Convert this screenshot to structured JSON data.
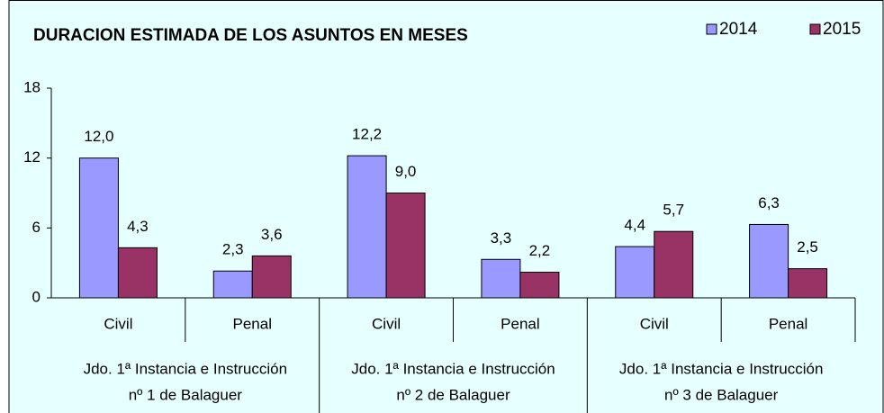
{
  "chart_data": {
    "type": "bar",
    "title": "DURACION ESTIMADA DE LOS ASUNTOS EN MESES",
    "categories": [
      "Civil",
      "Penal",
      "Civil",
      "Penal",
      "Civil",
      "Penal"
    ],
    "groups": [
      [
        "Jdo. 1ª Instancia e Instrucción",
        "nº 1 de Balaguer"
      ],
      [
        "Jdo. 1ª Instancia e Instrucción",
        "nº 2 de Balaguer"
      ],
      [
        "Jdo. 1ª Instancia e Instrucción",
        "nº 3 de Balaguer"
      ]
    ],
    "series": [
      {
        "name": "2014",
        "color": "#9999ff",
        "values": [
          12.0,
          2.3,
          12.2,
          3.3,
          4.4,
          6.3
        ],
        "value_labels": [
          "12,0",
          "2,3",
          "12,2",
          "3,3",
          "4,4",
          "6,3"
        ]
      },
      {
        "name": "2015",
        "color": "#993366",
        "values": [
          4.3,
          3.6,
          9.0,
          2.2,
          5.7,
          2.5
        ],
        "value_labels": [
          "4,3",
          "3,6",
          "9,0",
          "2,2",
          "5,7",
          "2,5"
        ]
      }
    ],
    "ylim": [
      0,
      18
    ],
    "yticks": [
      0,
      6,
      12,
      18
    ],
    "legend": "top-right"
  }
}
